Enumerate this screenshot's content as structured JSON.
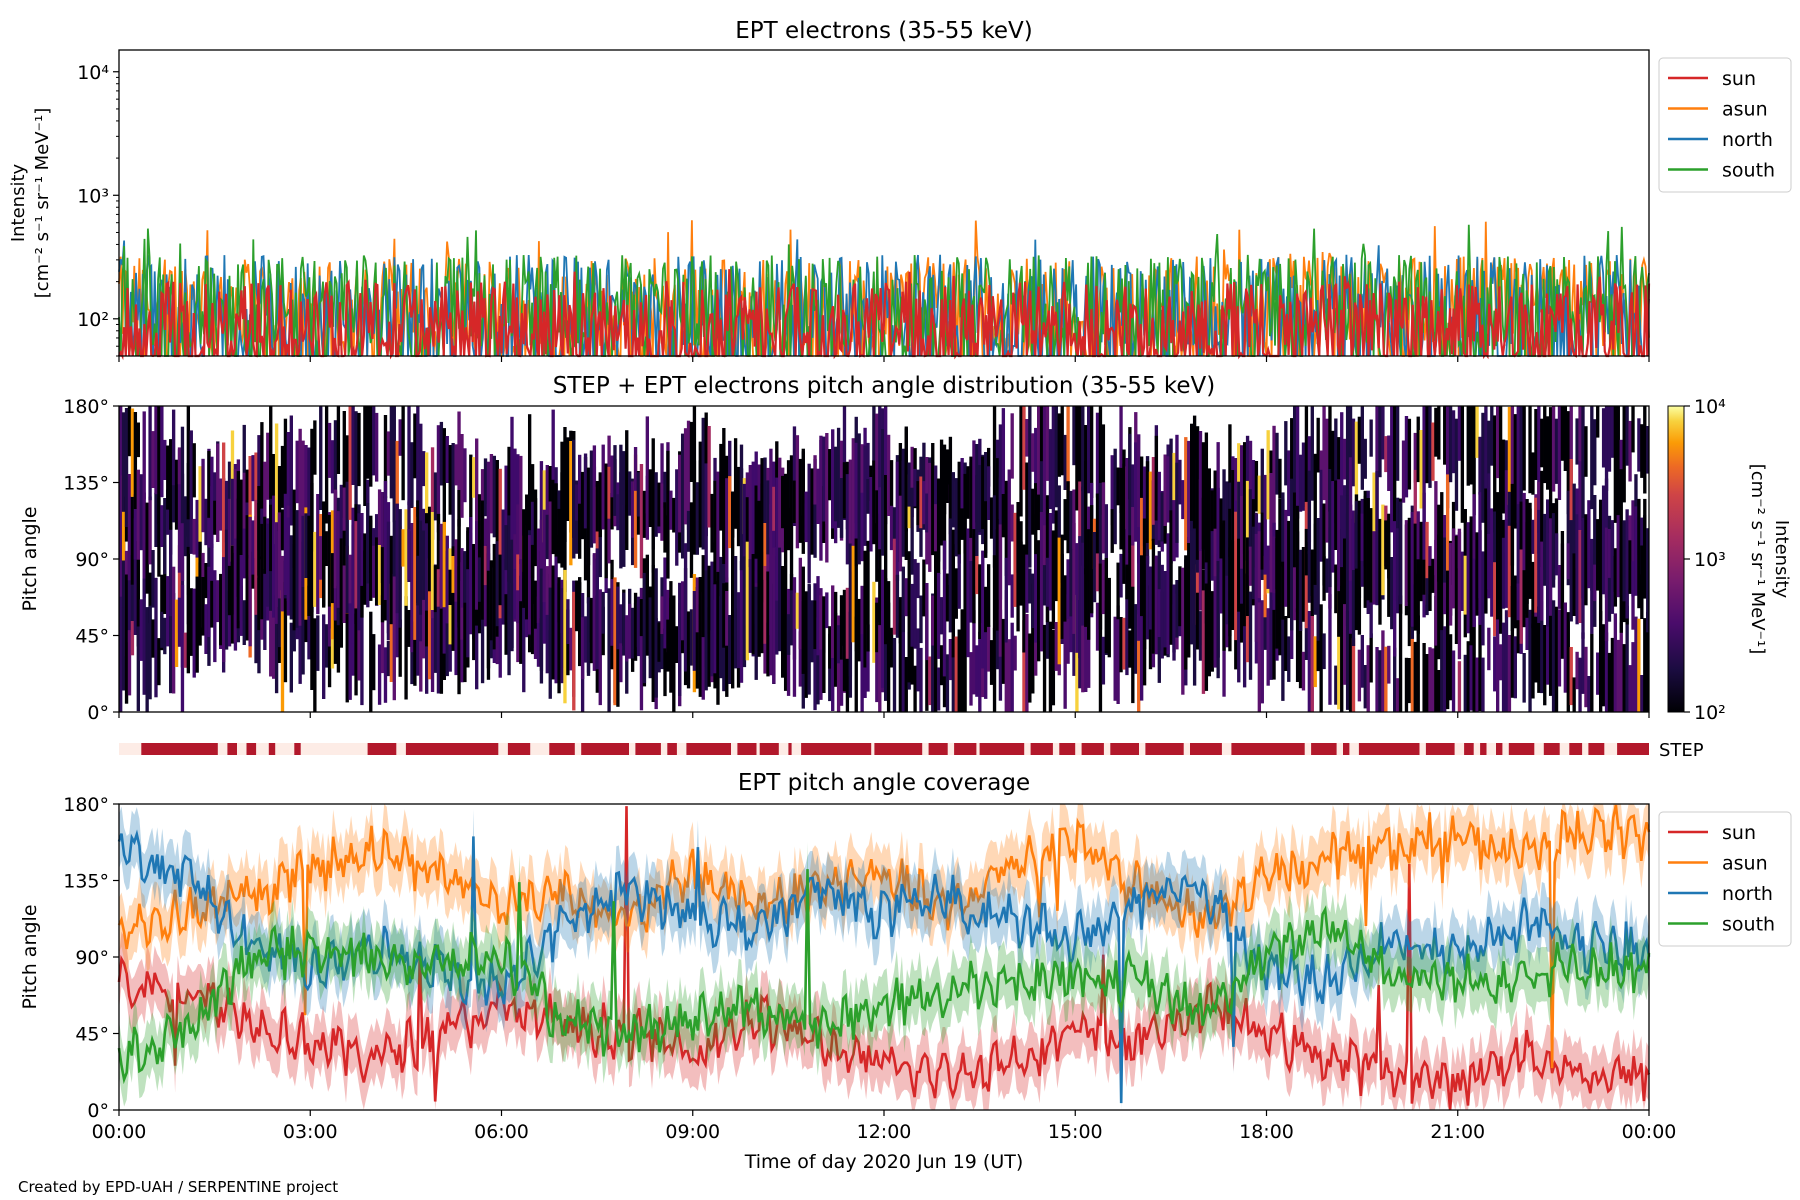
{
  "credit": "Created by EPD-UAH / SERPENTINE project",
  "colors": {
    "sun": "#d62728",
    "asun": "#ff7f0e",
    "north": "#1f77b4",
    "south": "#2ca02c",
    "step_bar": "#b2182b",
    "step_bg": "#fdece6"
  },
  "chart_data": [
    {
      "type": "line",
      "title": "EPT electrons (35-55 keV)",
      "ylabel_line1": "Intensity",
      "ylabel_line2": "[cm⁻² s⁻¹ sr⁻¹ MeV⁻¹]",
      "yscale": "log",
      "ylim": [
        50,
        15000
      ],
      "yticks": [
        {
          "v": 100,
          "label": "10²"
        },
        {
          "v": 1000,
          "label": "10³"
        },
        {
          "v": 10000,
          "label": "10⁴"
        }
      ],
      "xlim_hours": [
        0,
        24
      ],
      "legend": "outside-right",
      "series": [
        {
          "name": "sun",
          "color": "#d62728",
          "typical": [
            50,
            200
          ],
          "peak": 260
        },
        {
          "name": "asun",
          "color": "#ff7f0e",
          "typical": [
            60,
            320
          ],
          "peak": 650
        },
        {
          "name": "north",
          "color": "#1f77b4",
          "typical": [
            60,
            330
          ],
          "peak": 560
        },
        {
          "name": "south",
          "color": "#2ca02c",
          "typical": [
            60,
            330
          ],
          "peak": 580
        }
      ]
    },
    {
      "type": "heatmap",
      "title": "STEP + EPT electrons pitch angle distribution (35-55 keV)",
      "ylabel": "Pitch angle",
      "ylim": [
        0,
        180
      ],
      "yticks": [
        "0°",
        "45°",
        "90°",
        "135°",
        "180°"
      ],
      "colorbar": {
        "label_line1": "Intensity",
        "label_line2": "[cm⁻² s⁻¹ sr⁻¹ MeV⁻¹]",
        "scale": "log",
        "range": [
          100,
          10000
        ],
        "ticks": [
          "10²",
          "10³",
          "10⁴"
        ],
        "colormap": "inferno"
      },
      "step_label": "STEP",
      "step_coverage_hours": [
        [
          0.35,
          1.55
        ],
        [
          1.7,
          1.85
        ],
        [
          2.0,
          2.15
        ],
        [
          2.35,
          2.45
        ],
        [
          2.75,
          2.85
        ],
        [
          3.9,
          4.35
        ],
        [
          4.5,
          5.95
        ],
        [
          6.1,
          6.45
        ],
        [
          6.75,
          7.15
        ],
        [
          7.25,
          8.0
        ],
        [
          8.1,
          8.5
        ],
        [
          8.6,
          8.75
        ],
        [
          8.9,
          9.6
        ],
        [
          9.7,
          10.0
        ],
        [
          10.05,
          10.35
        ],
        [
          10.5,
          10.55
        ],
        [
          10.7,
          11.8
        ],
        [
          11.85,
          12.6
        ],
        [
          12.7,
          13.0
        ],
        [
          13.1,
          13.45
        ],
        [
          13.5,
          14.2
        ],
        [
          14.3,
          14.65
        ],
        [
          14.75,
          15.0
        ],
        [
          15.1,
          15.45
        ],
        [
          15.55,
          16.0
        ],
        [
          16.1,
          16.7
        ],
        [
          16.8,
          17.3
        ],
        [
          17.45,
          18.6
        ],
        [
          18.7,
          19.1
        ],
        [
          19.2,
          19.3
        ],
        [
          19.45,
          20.4
        ],
        [
          20.5,
          20.95
        ],
        [
          21.1,
          21.25
        ],
        [
          21.35,
          21.45
        ],
        [
          21.6,
          21.7
        ],
        [
          21.8,
          22.2
        ],
        [
          22.35,
          22.6
        ],
        [
          22.75,
          22.95
        ],
        [
          23.05,
          23.3
        ],
        [
          23.5,
          24.0
        ]
      ]
    },
    {
      "type": "line",
      "title": "EPT pitch angle coverage",
      "ylabel": "Pitch angle",
      "ylim": [
        0,
        180
      ],
      "yticks": [
        "0°",
        "45°",
        "90°",
        "135°",
        "180°"
      ],
      "xlabel": "Time of day 2020 Jun 19 (UT)",
      "xticks": [
        "00:00",
        "03:00",
        "06:00",
        "09:00",
        "12:00",
        "15:00",
        "18:00",
        "21:00",
        "00:00"
      ],
      "xlim_hours": [
        0,
        24
      ],
      "legend": "outside-right",
      "series": [
        {
          "name": "sun",
          "color": "#d62728",
          "x": [
            0,
            1,
            2,
            3,
            4,
            5,
            6,
            7,
            8,
            9,
            10,
            11,
            12,
            13,
            14,
            15,
            16,
            17,
            18,
            19,
            20,
            21,
            22,
            23,
            24
          ],
          "y": [
            75,
            72,
            55,
            40,
            30,
            45,
            60,
            50,
            45,
            35,
            55,
            40,
            25,
            20,
            30,
            45,
            40,
            60,
            45,
            30,
            20,
            15,
            35,
            20,
            20
          ]
        },
        {
          "name": "asun",
          "color": "#ff7f0e",
          "x": [
            0,
            1,
            2,
            3,
            4,
            5,
            6,
            7,
            8,
            9,
            10,
            11,
            12,
            13,
            14,
            15,
            16,
            17,
            18,
            19,
            20,
            21,
            22,
            23,
            24
          ],
          "y": [
            105,
            115,
            125,
            140,
            155,
            140,
            120,
            130,
            110,
            140,
            120,
            130,
            140,
            115,
            145,
            160,
            130,
            110,
            135,
            150,
            155,
            160,
            150,
            165,
            160
          ]
        },
        {
          "name": "north",
          "color": "#1f77b4",
          "x": [
            0,
            1,
            2,
            3,
            4,
            5,
            6,
            7,
            8,
            9,
            10,
            11,
            12,
            13,
            14,
            15,
            16,
            17,
            18,
            19,
            20,
            21,
            22,
            23,
            24
          ],
          "y": [
            155,
            140,
            100,
            80,
            95,
            85,
            70,
            110,
            130,
            115,
            105,
            130,
            115,
            125,
            110,
            100,
            120,
            130,
            80,
            75,
            100,
            90,
            110,
            95,
            90
          ]
        },
        {
          "name": "south",
          "color": "#2ca02c",
          "x": [
            0,
            1,
            2,
            3,
            4,
            5,
            6,
            7,
            8,
            9,
            10,
            11,
            12,
            13,
            14,
            15,
            16,
            17,
            18,
            19,
            20,
            21,
            22,
            23,
            24
          ],
          "y": [
            30,
            45,
            90,
            95,
            90,
            85,
            90,
            50,
            45,
            55,
            60,
            50,
            60,
            70,
            75,
            80,
            75,
            55,
            90,
            110,
            80,
            75,
            80,
            85,
            80
          ]
        }
      ]
    }
  ]
}
